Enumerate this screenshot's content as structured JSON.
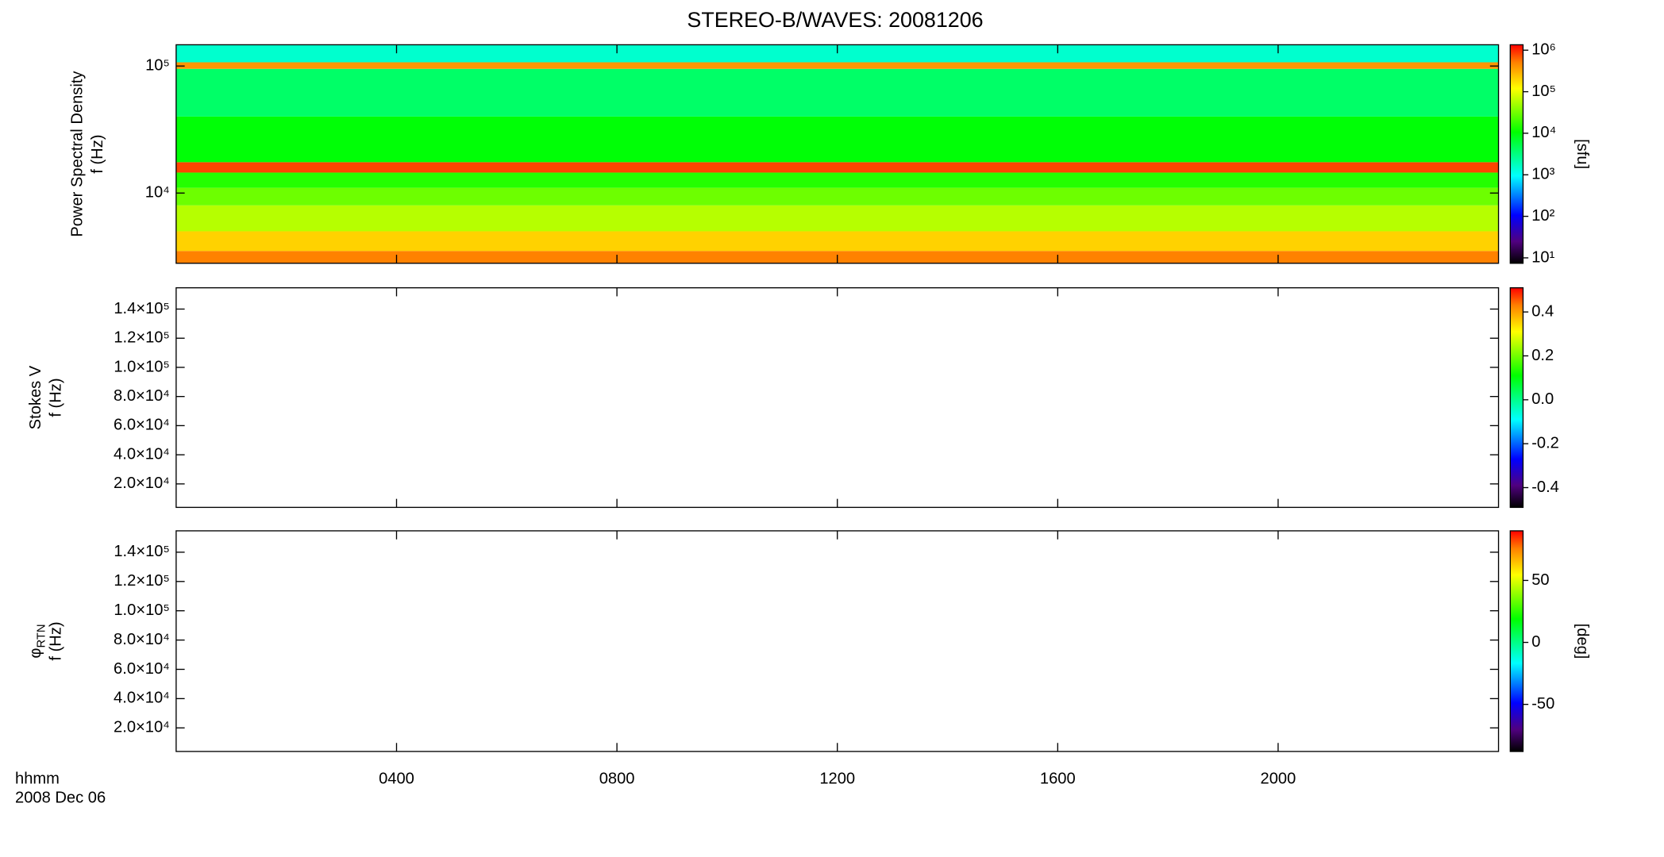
{
  "chart_data": [
    {
      "type": "heatmap",
      "title": "STEREO-B/WAVES: 20081206",
      "y_label": "Power Spectral Density",
      "y_label_2": "f (Hz)",
      "ylog": true,
      "ylim": [
        2800,
        147000
      ],
      "yticks": [
        {
          "value": 10000,
          "label": "10⁴"
        },
        {
          "value": 100000,
          "label": "10⁵"
        }
      ],
      "xlim": [
        0,
        24
      ],
      "spectrogram": {
        "freq_bins": [
          2800,
          3500,
          5000,
          8000,
          11000,
          14500,
          17500,
          40000,
          95000,
          107000,
          147000
        ],
        "psd": [
          500000,
          200000,
          60000,
          30000,
          15000,
          800000,
          10000,
          4000,
          400000,
          1500
        ]
      },
      "colorbar": {
        "log": true,
        "lim": [
          7.4,
          1350000
        ],
        "colormap": "rainbow",
        "label": "[sfu]",
        "ticks": [
          {
            "value": 10,
            "label": "10¹"
          },
          {
            "value": 100,
            "label": "10²"
          },
          {
            "value": 1000,
            "label": "10³"
          },
          {
            "value": 10000,
            "label": "10⁴"
          },
          {
            "value": 100000,
            "label": "10⁵"
          },
          {
            "value": 1000000,
            "label": "10⁶"
          }
        ]
      }
    },
    {
      "type": "heatmap",
      "y_label": "Stokes V",
      "y_label_2": "f (Hz)",
      "ylim": [
        3900,
        154600
      ],
      "yticks": [
        {
          "value": 20000,
          "label": "2.0×10⁴"
        },
        {
          "value": 40000,
          "label": "4.0×10⁴"
        },
        {
          "value": 60000,
          "label": "6.0×10⁴"
        },
        {
          "value": 80000,
          "label": "8.0×10⁴"
        },
        {
          "value": 100000,
          "label": "1.0×10⁵"
        },
        {
          "value": 120000,
          "label": "1.2×10⁵"
        },
        {
          "value": 140000,
          "label": "1.4×10⁵"
        }
      ],
      "xlim": [
        0,
        24
      ],
      "colorbar": {
        "log": false,
        "lim": [
          -0.49,
          0.51
        ],
        "colormap": "rainbow",
        "ticks": [
          -0.4,
          -0.2,
          {
            "value": 0,
            "label": "0.0"
          },
          0.2,
          0.4
        ]
      }
    },
    {
      "type": "heatmap",
      "y_label": "φ",
      "y_label_sub": "RTN",
      "y_label_2": "f (Hz)",
      "ylim": [
        3900,
        154600
      ],
      "yticks": [
        {
          "value": 20000,
          "label": "2.0×10⁴"
        },
        {
          "value": 40000,
          "label": "4.0×10⁴"
        },
        {
          "value": 60000,
          "label": "6.0×10⁴"
        },
        {
          "value": 80000,
          "label": "8.0×10⁴"
        },
        {
          "value": 100000,
          "label": "1.0×10⁵"
        },
        {
          "value": 120000,
          "label": "1.2×10⁵"
        },
        {
          "value": 140000,
          "label": "1.4×10⁵"
        }
      ],
      "xlim": [
        0,
        24
      ],
      "xticks": [
        {
          "value": 4,
          "label": "0400"
        },
        {
          "value": 8,
          "label": "0800"
        },
        {
          "value": 12,
          "label": "1200"
        },
        {
          "value": 16,
          "label": "1600"
        },
        {
          "value": 20,
          "label": "2000"
        }
      ],
      "x_label": "hhmm",
      "x_label_2": "2008 Dec 06",
      "colorbar": {
        "log": false,
        "lim": [
          -88,
          90
        ],
        "colormap": "rainbow",
        "label": "[deg]",
        "ticks": [
          -50,
          0,
          50
        ]
      }
    }
  ]
}
